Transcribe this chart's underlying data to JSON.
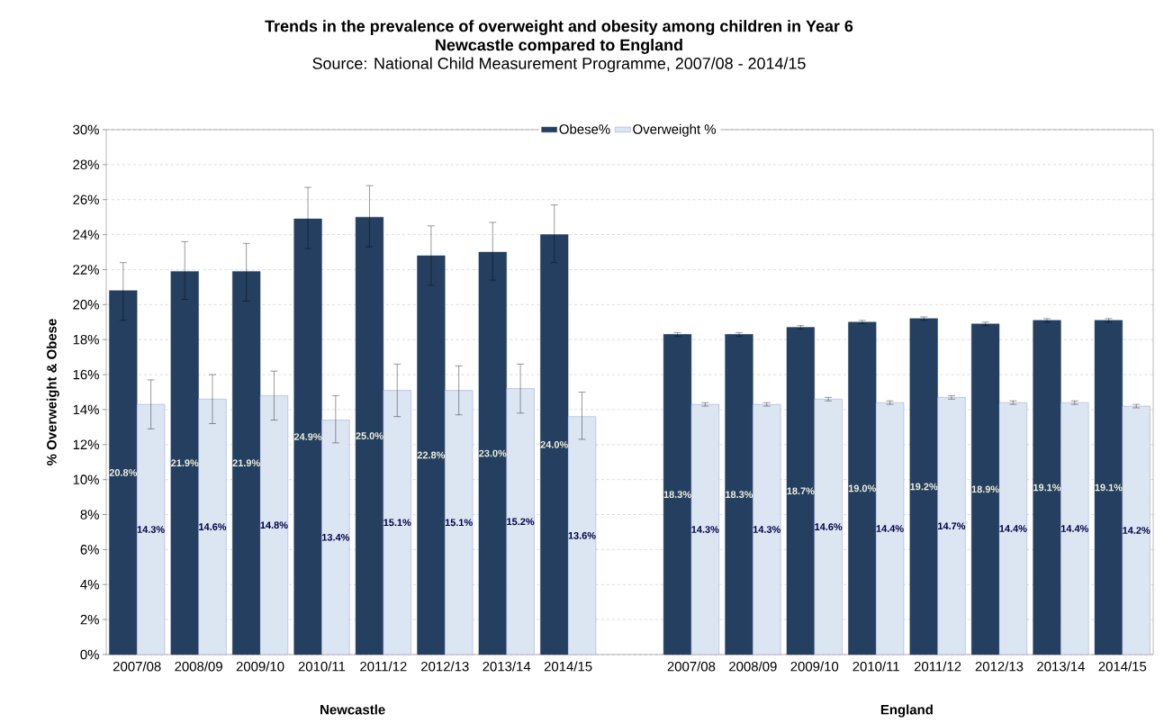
{
  "chart_data": {
    "type": "bar",
    "title": "Trends in the prevalence of overweight and obesity among children in Year 6\nNewcastle compared to England",
    "subtitle": "Source: National Child Measurement Programme, 2007/08 - 2014/15",
    "ylabel": "% Overweight & Obese",
    "categories": [
      "2007/08",
      "2008/09",
      "2009/10",
      "2010/11",
      "2011/12",
      "2012/13",
      "2013/14",
      "2014/15",
      null,
      "2007/08",
      "2008/09",
      "2009/10",
      "2010/11",
      "2011/12",
      "2012/13",
      "2013/14",
      "2014/15"
    ],
    "series": [
      {
        "name": "Obese%",
        "color": "#243f60",
        "values": [
          20.8,
          21.9,
          21.9,
          24.9,
          25.0,
          22.8,
          23.0,
          24.0,
          null,
          18.3,
          18.3,
          18.7,
          19.0,
          19.2,
          18.9,
          19.1,
          19.1
        ],
        "errors": [
          [
            19.1,
            22.4
          ],
          [
            20.3,
            23.6
          ],
          [
            20.2,
            23.5
          ],
          [
            23.2,
            26.7
          ],
          [
            23.3,
            26.8
          ],
          [
            21.1,
            24.5
          ],
          [
            21.4,
            24.7
          ],
          [
            22.4,
            25.7
          ],
          null,
          [
            18.2,
            18.4
          ],
          [
            18.2,
            18.4
          ],
          [
            18.6,
            18.8
          ],
          [
            18.9,
            19.1
          ],
          [
            19.1,
            19.3
          ],
          [
            18.8,
            19.0
          ],
          [
            19.0,
            19.2
          ],
          [
            19.0,
            19.2
          ]
        ],
        "value_labels": [
          "20.8%",
          "21.9%",
          "21.9%",
          "24.9%",
          "25.0%",
          "22.8%",
          "23.0%",
          "24.0%",
          null,
          "18.3%",
          "18.3%",
          "18.7%",
          "19.0%",
          "19.2%",
          "18.9%",
          "19.1%",
          "19.1%"
        ]
      },
      {
        "name": "Overweight %",
        "color": "#dce6f2",
        "values": [
          14.3,
          14.6,
          14.8,
          13.4,
          15.1,
          15.1,
          15.2,
          13.6,
          null,
          14.3,
          14.3,
          14.6,
          14.4,
          14.7,
          14.4,
          14.4,
          14.2
        ],
        "errors": [
          [
            12.9,
            15.7
          ],
          [
            13.2,
            16.0
          ],
          [
            13.4,
            16.2
          ],
          [
            12.1,
            14.8
          ],
          [
            13.6,
            16.6
          ],
          [
            13.7,
            16.5
          ],
          [
            13.8,
            16.6
          ],
          [
            12.3,
            15.0
          ],
          null,
          [
            14.2,
            14.4
          ],
          [
            14.2,
            14.4
          ],
          [
            14.5,
            14.7
          ],
          [
            14.3,
            14.5
          ],
          [
            14.6,
            14.8
          ],
          [
            14.3,
            14.5
          ],
          [
            14.3,
            14.5
          ],
          [
            14.1,
            14.3
          ]
        ],
        "value_labels": [
          "14.3%",
          "14.6%",
          "14.8%",
          "13.4%",
          "15.1%",
          "15.1%",
          "15.2%",
          "13.6%",
          null,
          "14.3%",
          "14.3%",
          "14.6%",
          "14.4%",
          "14.7%",
          "14.4%",
          "14.4%",
          "14.2%"
        ]
      }
    ],
    "ylim": [
      0,
      30
    ],
    "yticks": [
      {
        "value": 0,
        "label": "0%"
      },
      {
        "value": 2,
        "label": "2%"
      },
      {
        "value": 4,
        "label": "4%"
      },
      {
        "value": 6,
        "label": "6%"
      },
      {
        "value": 8,
        "label": "8%"
      },
      {
        "value": 10,
        "label": "10%"
      },
      {
        "value": 12,
        "label": "12%"
      },
      {
        "value": 14,
        "label": "14%"
      },
      {
        "value": 16,
        "label": "16%"
      },
      {
        "value": 18,
        "label": "18%"
      },
      {
        "value": 20,
        "label": "20%"
      },
      {
        "value": 22,
        "label": "22%"
      },
      {
        "value": 24,
        "label": "24%"
      },
      {
        "value": 26,
        "label": "26%"
      },
      {
        "value": 28,
        "label": "28%"
      },
      {
        "value": 30,
        "label": "30%"
      }
    ],
    "grid": "y",
    "legend": "top",
    "annotations": [
      "Newcastle",
      "England"
    ]
  }
}
